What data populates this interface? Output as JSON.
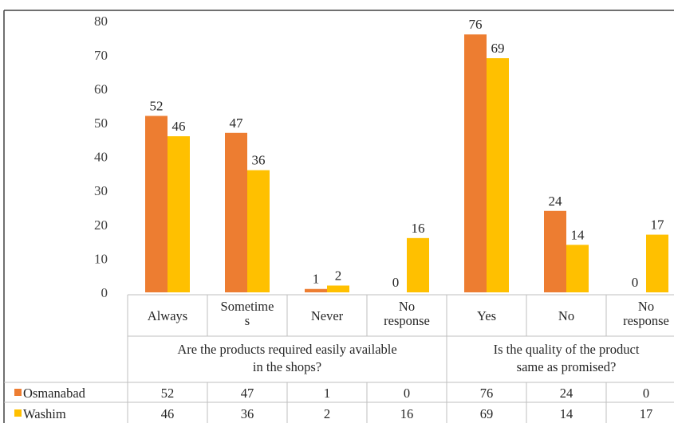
{
  "chart_data": {
    "type": "bar",
    "title": "",
    "xlabel": "",
    "ylabel": "",
    "ylim": [
      0,
      80
    ],
    "yticks": [
      0,
      10,
      20,
      30,
      40,
      50,
      60,
      70,
      80
    ],
    "grid": false,
    "legend": "data-table-left",
    "categories": [
      [
        "Always"
      ],
      [
        "Sometime",
        "s"
      ],
      [
        "Never"
      ],
      [
        "No",
        "response"
      ],
      [
        "Yes"
      ],
      [
        "No"
      ],
      [
        "No",
        "response"
      ]
    ],
    "groups": [
      {
        "lines": [
          "Are the products required easily available",
          "in the shops?"
        ],
        "categories": [
          0,
          1,
          2,
          3
        ]
      },
      {
        "lines": [
          "Is the quality of the product",
          "same as promised?"
        ],
        "categories": [
          4,
          5,
          6
        ]
      }
    ],
    "series": [
      {
        "name": "Osmanabad",
        "color": "#ED7D31",
        "values": [
          52,
          47,
          1,
          0,
          76,
          24,
          0
        ]
      },
      {
        "name": "Washim",
        "color": "#FFC000",
        "values": [
          46,
          36,
          2,
          16,
          69,
          14,
          17
        ]
      }
    ]
  }
}
